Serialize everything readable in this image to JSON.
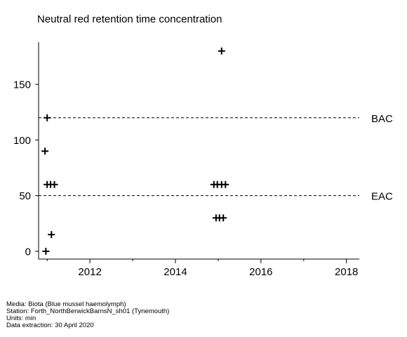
{
  "chart_data": {
    "type": "scatter",
    "title": "Neutral red retention time concentration",
    "xlabel": "",
    "ylabel": "",
    "xlim": [
      2010.8,
      2018.3
    ],
    "ylim": [
      -7,
      188
    ],
    "x_ticks": [
      2012,
      2014,
      2016,
      2018
    ],
    "x_tick_labels": [
      "2012",
      "2014",
      "2016",
      "2018"
    ],
    "y_ticks": [
      0,
      50,
      100,
      150
    ],
    "y_tick_labels": [
      "0",
      "50",
      "100",
      "150"
    ],
    "marker": "plus",
    "grid": false,
    "points": [
      {
        "x": 2010.97,
        "y": 0
      },
      {
        "x": 2011.1,
        "y": 15
      },
      {
        "x": 2010.95,
        "y": 90
      },
      {
        "x": 2011.0,
        "y": 120
      },
      {
        "x": 2011.0,
        "y": 60
      },
      {
        "x": 2011.08,
        "y": 60
      },
      {
        "x": 2011.17,
        "y": 60
      },
      {
        "x": 2014.9,
        "y": 60
      },
      {
        "x": 2014.98,
        "y": 60
      },
      {
        "x": 2015.08,
        "y": 60
      },
      {
        "x": 2015.17,
        "y": 60
      },
      {
        "x": 2014.95,
        "y": 30
      },
      {
        "x": 2015.03,
        "y": 30
      },
      {
        "x": 2015.12,
        "y": 30
      },
      {
        "x": 2015.08,
        "y": 180
      }
    ],
    "reference_lines": [
      {
        "label": "BAC",
        "y": 120,
        "style": "dashed"
      },
      {
        "label": "EAC",
        "y": 50,
        "style": "dashed"
      }
    ]
  },
  "footer": {
    "media": "Media: Biota (Blue mussel haemolymph)",
    "station": "Station: Forth_NorthBerwickBarnsN_sh01 (Tynemouth)",
    "units": "Units:  min",
    "extraction": "Data extraction: 30 April 2020"
  }
}
